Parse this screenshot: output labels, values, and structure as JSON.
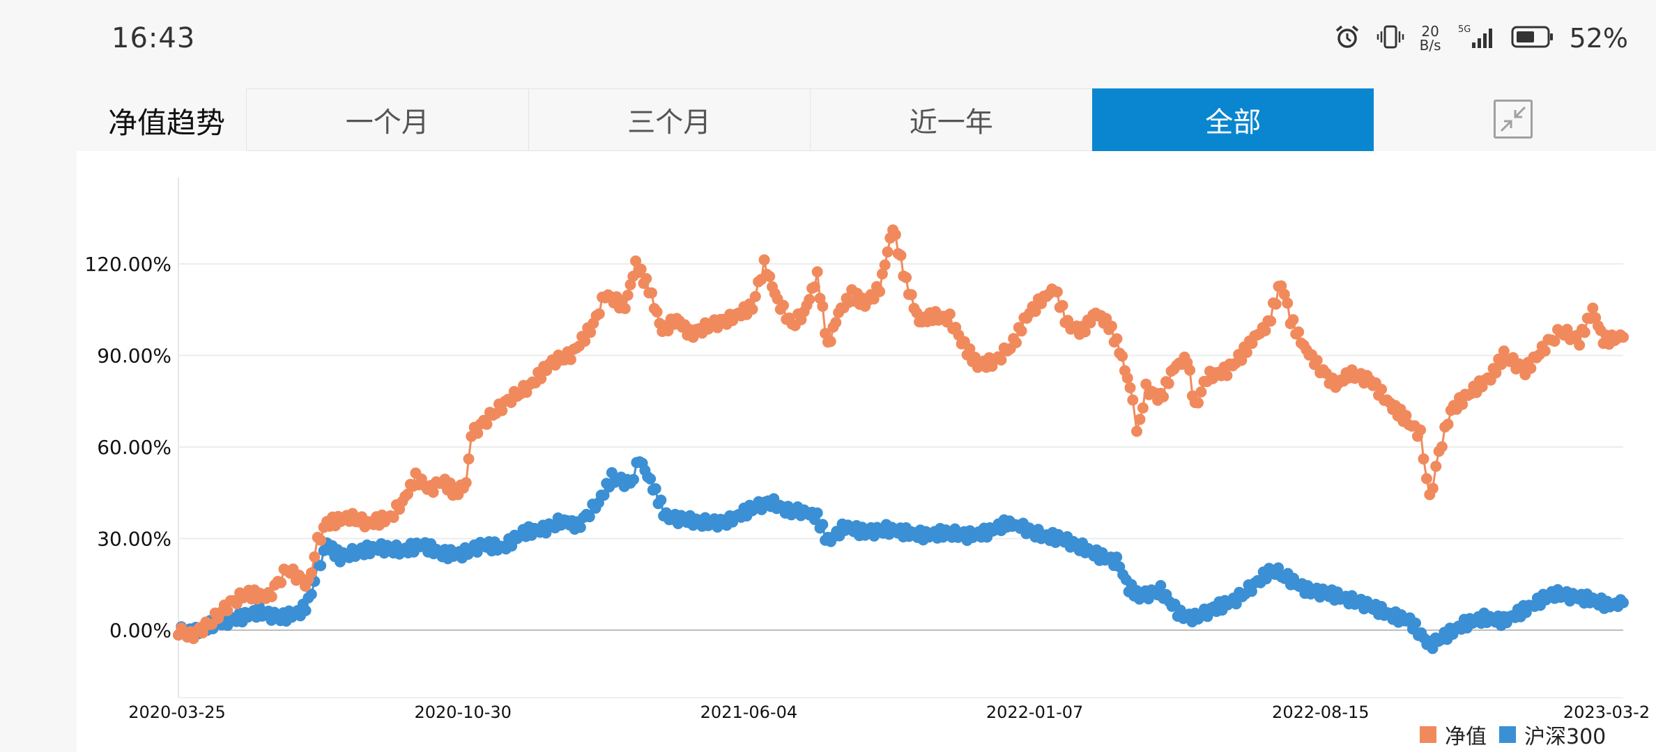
{
  "status_bar": {
    "time": "16:43",
    "net_speed_value": "20",
    "net_speed_unit": "B/s",
    "network": "5G",
    "battery": "52%",
    "icons": [
      "alarm-icon",
      "vibrate-icon",
      "signal-icon",
      "battery-icon"
    ]
  },
  "header": {
    "title": "净值趋势",
    "tabs": [
      {
        "label": "一个月",
        "active": false
      },
      {
        "label": "三个月",
        "active": false
      },
      {
        "label": "近一年",
        "active": false
      },
      {
        "label": "全部",
        "active": true
      }
    ],
    "collapse_icon": "collapse-arrows-icon"
  },
  "colors": {
    "accent": "#0a86d0",
    "series_nav": "#f08a5d",
    "series_index": "#3b8fd4"
  },
  "chart_data": {
    "type": "line",
    "title": "",
    "xlabel": "",
    "ylabel": "",
    "ylim": [
      -20,
      145
    ],
    "yticks": [
      0,
      30,
      60,
      90,
      120
    ],
    "ytick_labels": [
      "0.00%",
      "30.00%",
      "60.00%",
      "90.00%",
      "120.00%"
    ],
    "x_tick_labels": [
      "2020-03-25",
      "2020-10-30",
      "2021-06-04",
      "2022-01-07",
      "2022-08-15",
      "2023-03-2"
    ],
    "xlim": [
      "2020-03-25",
      "2023-03-20"
    ],
    "grid": true,
    "legend_position": "bottom-right",
    "markers": true,
    "series": [
      {
        "name": "净值",
        "color": "#f08a5d",
        "points": [
          [
            "2020-03-25",
            0
          ],
          [
            "2020-04-03",
            -2
          ],
          [
            "2020-04-17",
            2
          ],
          [
            "2020-05-01",
            8
          ],
          [
            "2020-05-15",
            12
          ],
          [
            "2020-06-01",
            11
          ],
          [
            "2020-06-15",
            20
          ],
          [
            "2020-07-01",
            15
          ],
          [
            "2020-07-08",
            29
          ],
          [
            "2020-07-15",
            35
          ],
          [
            "2020-08-01",
            37
          ],
          [
            "2020-08-15",
            35
          ],
          [
            "2020-09-01",
            37
          ],
          [
            "2020-09-10",
            42
          ],
          [
            "2020-09-20",
            50
          ],
          [
            "2020-10-01",
            46
          ],
          [
            "2020-10-10",
            49
          ],
          [
            "2020-10-20",
            45
          ],
          [
            "2020-10-28",
            48
          ],
          [
            "2020-11-01",
            64
          ],
          [
            "2020-11-15",
            70
          ],
          [
            "2020-12-01",
            76
          ],
          [
            "2020-12-15",
            80
          ],
          [
            "2021-01-01",
            88
          ],
          [
            "2021-01-15",
            90
          ],
          [
            "2021-02-01",
            100
          ],
          [
            "2021-02-10",
            110
          ],
          [
            "2021-02-25",
            106
          ],
          [
            "2021-03-05",
            120
          ],
          [
            "2021-03-15",
            112
          ],
          [
            "2021-03-25",
            98
          ],
          [
            "2021-04-05",
            102
          ],
          [
            "2021-04-15",
            97
          ],
          [
            "2021-05-01",
            100
          ],
          [
            "2021-05-15",
            102
          ],
          [
            "2021-06-01",
            106
          ],
          [
            "2021-06-10",
            120
          ],
          [
            "2021-06-20",
            108
          ],
          [
            "2021-07-01",
            100
          ],
          [
            "2021-07-10",
            104
          ],
          [
            "2021-07-20",
            116
          ],
          [
            "2021-07-28",
            93
          ],
          [
            "2021-08-05",
            104
          ],
          [
            "2021-08-15",
            110
          ],
          [
            "2021-08-25",
            107
          ],
          [
            "2021-09-05",
            112
          ],
          [
            "2021-09-15",
            132
          ],
          [
            "2021-09-25",
            114
          ],
          [
            "2021-10-05",
            101
          ],
          [
            "2021-10-15",
            103
          ],
          [
            "2021-10-28",
            102
          ],
          [
            "2021-11-08",
            93
          ],
          [
            "2021-11-18",
            87
          ],
          [
            "2021-12-01",
            88
          ],
          [
            "2021-12-15",
            94
          ],
          [
            "2021-12-25",
            103
          ],
          [
            "2022-01-05",
            108
          ],
          [
            "2022-01-15",
            112
          ],
          [
            "2022-01-25",
            100
          ],
          [
            "2022-02-05",
            98
          ],
          [
            "2022-02-15",
            104
          ],
          [
            "2022-02-25",
            100
          ],
          [
            "2022-03-05",
            92
          ],
          [
            "2022-03-15",
            76
          ],
          [
            "2022-03-18",
            64
          ],
          [
            "2022-03-25",
            79
          ],
          [
            "2022-04-05",
            76
          ],
          [
            "2022-04-15",
            86
          ],
          [
            "2022-04-25",
            89
          ],
          [
            "2022-05-01",
            73
          ],
          [
            "2022-05-10",
            83
          ],
          [
            "2022-05-25",
            85
          ],
          [
            "2022-06-05",
            90
          ],
          [
            "2022-06-15",
            96
          ],
          [
            "2022-06-25",
            100
          ],
          [
            "2022-07-05",
            114
          ],
          [
            "2022-07-12",
            102
          ],
          [
            "2022-07-22",
            93
          ],
          [
            "2022-08-01",
            87
          ],
          [
            "2022-08-15",
            80
          ],
          [
            "2022-08-25",
            84
          ],
          [
            "2022-09-10",
            82
          ],
          [
            "2022-09-25",
            74
          ],
          [
            "2022-10-05",
            70
          ],
          [
            "2022-10-18",
            64
          ],
          [
            "2022-10-25",
            43
          ],
          [
            "2022-11-01",
            58
          ],
          [
            "2022-11-10",
            72
          ],
          [
            "2022-11-25",
            78
          ],
          [
            "2022-12-10",
            83
          ],
          [
            "2022-12-20",
            90
          ],
          [
            "2023-01-05",
            85
          ],
          [
            "2023-01-20",
            93
          ],
          [
            "2023-02-01",
            98
          ],
          [
            "2023-02-15",
            95
          ],
          [
            "2023-02-25",
            105
          ],
          [
            "2023-03-05",
            95
          ],
          [
            "2023-03-20",
            96
          ]
        ]
      },
      {
        "name": "沪深300",
        "color": "#3b8fd4",
        "points": [
          [
            "2020-03-25",
            0
          ],
          [
            "2020-04-05",
            -1
          ],
          [
            "2020-04-20",
            2
          ],
          [
            "2020-05-10",
            4
          ],
          [
            "2020-05-25",
            6
          ],
          [
            "2020-06-10",
            4
          ],
          [
            "2020-06-25",
            6
          ],
          [
            "2020-07-01",
            9
          ],
          [
            "2020-07-08",
            20
          ],
          [
            "2020-07-15",
            28
          ],
          [
            "2020-07-25",
            24
          ],
          [
            "2020-08-10",
            26
          ],
          [
            "2020-08-25",
            27
          ],
          [
            "2020-09-10",
            26
          ],
          [
            "2020-09-25",
            28
          ],
          [
            "2020-10-10",
            25
          ],
          [
            "2020-10-25",
            25
          ],
          [
            "2020-11-10",
            28
          ],
          [
            "2020-11-25",
            27
          ],
          [
            "2020-12-10",
            32
          ],
          [
            "2020-12-25",
            33
          ],
          [
            "2021-01-10",
            36
          ],
          [
            "2021-01-20",
            34
          ],
          [
            "2021-02-05",
            42
          ],
          [
            "2021-02-15",
            50
          ],
          [
            "2021-03-01",
            48
          ],
          [
            "2021-03-08",
            56
          ],
          [
            "2021-03-18",
            47
          ],
          [
            "2021-03-28",
            37
          ],
          [
            "2021-04-15",
            36
          ],
          [
            "2021-05-01",
            35
          ],
          [
            "2021-05-15",
            36
          ],
          [
            "2021-06-01",
            40
          ],
          [
            "2021-06-15",
            42
          ],
          [
            "2021-06-28",
            39
          ],
          [
            "2021-07-10",
            39
          ],
          [
            "2021-07-20",
            37
          ],
          [
            "2021-07-28",
            29
          ],
          [
            "2021-08-10",
            34
          ],
          [
            "2021-08-25",
            32
          ],
          [
            "2021-09-10",
            33
          ],
          [
            "2021-09-25",
            32
          ],
          [
            "2021-10-10",
            31
          ],
          [
            "2021-10-25",
            32
          ],
          [
            "2021-11-10",
            31
          ],
          [
            "2021-11-25",
            32
          ],
          [
            "2021-12-10",
            35
          ],
          [
            "2021-12-20",
            34
          ],
          [
            "2022-01-05",
            31
          ],
          [
            "2022-01-20",
            30
          ],
          [
            "2022-02-05",
            27
          ],
          [
            "2022-02-20",
            24
          ],
          [
            "2022-03-05",
            22
          ],
          [
            "2022-03-10",
            15
          ],
          [
            "2022-03-20",
            11
          ],
          [
            "2022-04-05",
            13
          ],
          [
            "2022-04-20",
            5
          ],
          [
            "2022-05-01",
            4
          ],
          [
            "2022-05-15",
            7
          ],
          [
            "2022-06-01",
            10
          ],
          [
            "2022-06-15",
            15
          ],
          [
            "2022-06-28",
            20
          ],
          [
            "2022-07-10",
            17
          ],
          [
            "2022-07-25",
            13
          ],
          [
            "2022-08-10",
            12
          ],
          [
            "2022-08-25",
            10
          ],
          [
            "2022-09-10",
            8
          ],
          [
            "2022-09-25",
            5
          ],
          [
            "2022-10-10",
            3
          ],
          [
            "2022-10-25",
            -5
          ],
          [
            "2022-11-05",
            -2
          ],
          [
            "2022-11-20",
            2
          ],
          [
            "2022-12-05",
            4
          ],
          [
            "2022-12-20",
            3
          ],
          [
            "2023-01-10",
            8
          ],
          [
            "2023-01-25",
            12
          ],
          [
            "2023-02-10",
            11
          ],
          [
            "2023-02-25",
            10
          ],
          [
            "2023-03-10",
            8
          ],
          [
            "2023-03-20",
            9
          ]
        ]
      }
    ]
  }
}
